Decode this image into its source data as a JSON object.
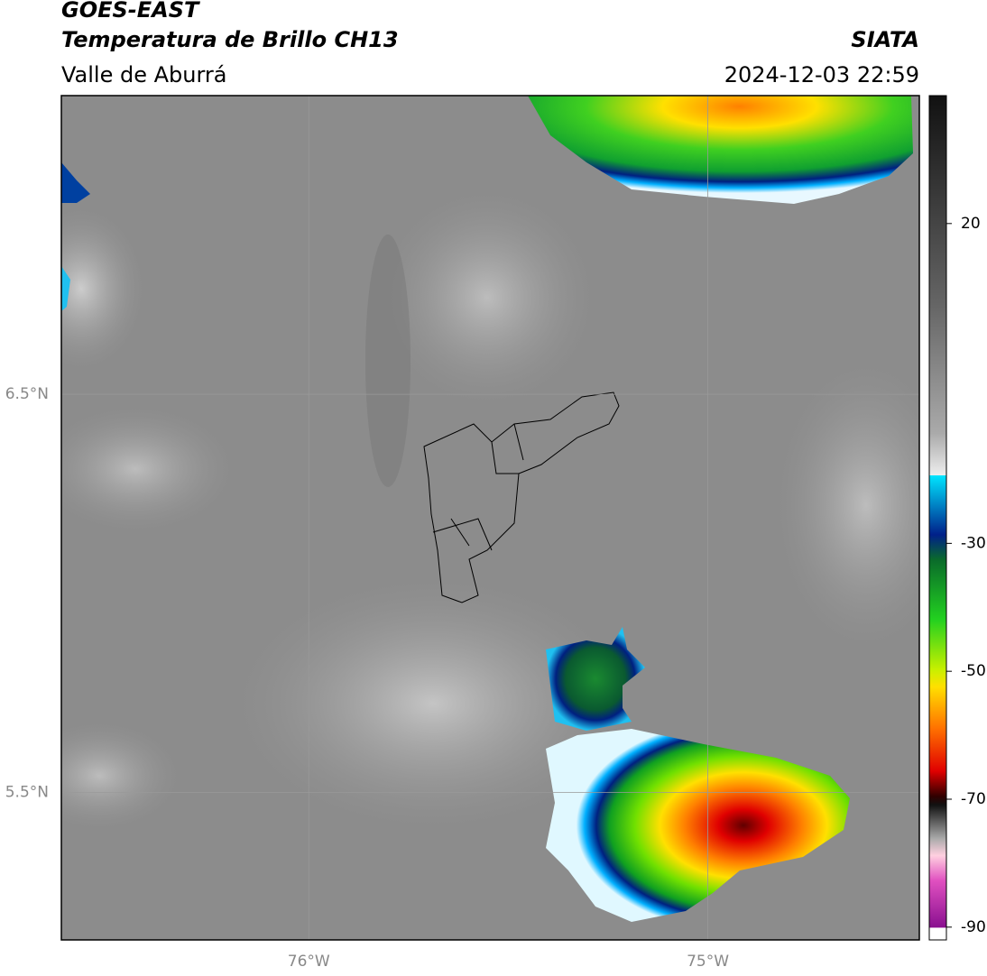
{
  "header": {
    "title": "GOES-EAST",
    "subtitle": "Temperatura de Brillo CH13",
    "region": "Valle de Aburrá",
    "source": "SIATA",
    "datetime": "2024-12-03 22:59"
  },
  "map": {
    "lonlim": [
      -76.62,
      -74.47
    ],
    "latlim": [
      5.13,
      7.25
    ],
    "lonticks": [
      {
        "value": -76,
        "label": "76°W"
      },
      {
        "value": -75,
        "label": "75°W"
      }
    ],
    "latticks": [
      {
        "value": 6.5,
        "label": "6.5°N"
      },
      {
        "value": 5.5,
        "label": "5.5°N"
      }
    ]
  },
  "colorbar": {
    "lim": [
      -92,
      40
    ],
    "ticks": [
      20,
      -30,
      -50,
      -70,
      -90
    ]
  }
}
